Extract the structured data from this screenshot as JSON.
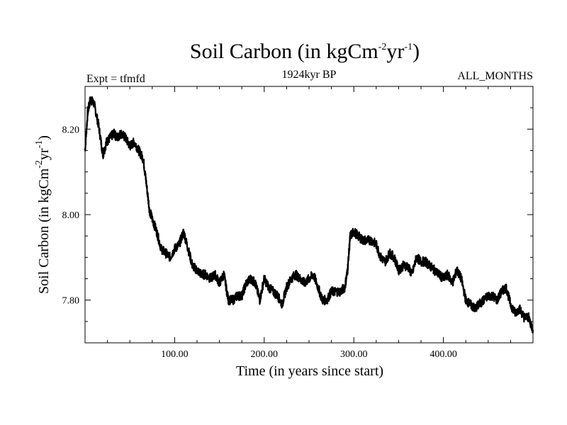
{
  "chart_data": {
    "type": "line",
    "title": "Soil Carbon (in kgCm",
    "title_exp1": "-2",
    "title_mid": "yr",
    "title_exp2": "-1",
    "title_end": ")",
    "subtitle_left": "Expt = tfmfd",
    "subtitle_center": "1924kyr BP",
    "subtitle_right": "ALL_MONTHS",
    "xlabel": "Time (in years since start)",
    "ylabel": "Soil Carbon (in kgCm",
    "ylabel_exp1": "-2",
    "ylabel_mid": "yr",
    "ylabel_exp2": "-1",
    "ylabel_end": ")",
    "xlim": [
      0,
      500
    ],
    "ylim": [
      7.7,
      8.3
    ],
    "xticks": [
      {
        "value": 100,
        "label": "100.00"
      },
      {
        "value": 200,
        "label": "200.00"
      },
      {
        "value": 300,
        "label": "300.00"
      },
      {
        "value": 400,
        "label": "400.00"
      }
    ],
    "yticks": [
      {
        "value": 7.8,
        "label": "7.80"
      },
      {
        "value": 8.0,
        "label": "8.00"
      },
      {
        "value": 8.2,
        "label": "8.20"
      }
    ],
    "line_color": "#000000",
    "series": [
      {
        "x": [
          0,
          3,
          6,
          10,
          15,
          20,
          24,
          28,
          32,
          36,
          40,
          45,
          50,
          55,
          60,
          65,
          68,
          72,
          75,
          80,
          85,
          90,
          95,
          100,
          105,
          110,
          115,
          120,
          125,
          130,
          135,
          140,
          145,
          150,
          155,
          160,
          165,
          170,
          175,
          180,
          185,
          190,
          195,
          200,
          205,
          210,
          215,
          220,
          225,
          230,
          235,
          240,
          245,
          250,
          255,
          260,
          265,
          270,
          275,
          280,
          285,
          290,
          293,
          296,
          300,
          305,
          310,
          315,
          320,
          325,
          330,
          335,
          340,
          345,
          350,
          355,
          360,
          365,
          370,
          375,
          380,
          385,
          390,
          395,
          400,
          405,
          410,
          415,
          420,
          425,
          430,
          435,
          440,
          445,
          450,
          455,
          460,
          465,
          470,
          475,
          480,
          485,
          490,
          495,
          500
        ],
        "y": [
          8.15,
          8.24,
          8.27,
          8.26,
          8.21,
          8.14,
          8.17,
          8.18,
          8.19,
          8.18,
          8.19,
          8.18,
          8.16,
          8.17,
          8.15,
          8.13,
          8.08,
          8.01,
          7.99,
          7.96,
          7.92,
          7.91,
          7.9,
          7.92,
          7.93,
          7.96,
          7.92,
          7.88,
          7.87,
          7.86,
          7.86,
          7.85,
          7.86,
          7.84,
          7.86,
          7.8,
          7.8,
          7.81,
          7.81,
          7.84,
          7.85,
          7.84,
          7.8,
          7.85,
          7.83,
          7.82,
          7.81,
          7.79,
          7.83,
          7.85,
          7.86,
          7.85,
          7.84,
          7.85,
          7.86,
          7.83,
          7.8,
          7.8,
          7.82,
          7.82,
          7.82,
          7.83,
          7.87,
          7.95,
          7.96,
          7.95,
          7.94,
          7.94,
          7.94,
          7.93,
          7.9,
          7.89,
          7.91,
          7.9,
          7.87,
          7.88,
          7.88,
          7.86,
          7.9,
          7.89,
          7.89,
          7.88,
          7.87,
          7.86,
          7.85,
          7.86,
          7.84,
          7.87,
          7.85,
          7.8,
          7.79,
          7.78,
          7.79,
          7.8,
          7.81,
          7.81,
          7.8,
          7.82,
          7.83,
          7.79,
          7.77,
          7.78,
          7.76,
          7.76,
          7.73
        ]
      }
    ]
  }
}
